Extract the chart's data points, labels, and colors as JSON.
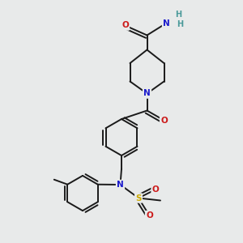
{
  "bg_color": "#e8eaea",
  "bond_color": "#1a1a1a",
  "bond_width": 1.4,
  "atom_colors": {
    "N": "#1a1acc",
    "O": "#cc1a1a",
    "S": "#ccaa00",
    "H": "#4a9a9a"
  },
  "font_size": 7.5,
  "fig_size": [
    3.0,
    3.0
  ],
  "dpi": 100,
  "xlim": [
    0,
    10
  ],
  "ylim": [
    0,
    10
  ]
}
